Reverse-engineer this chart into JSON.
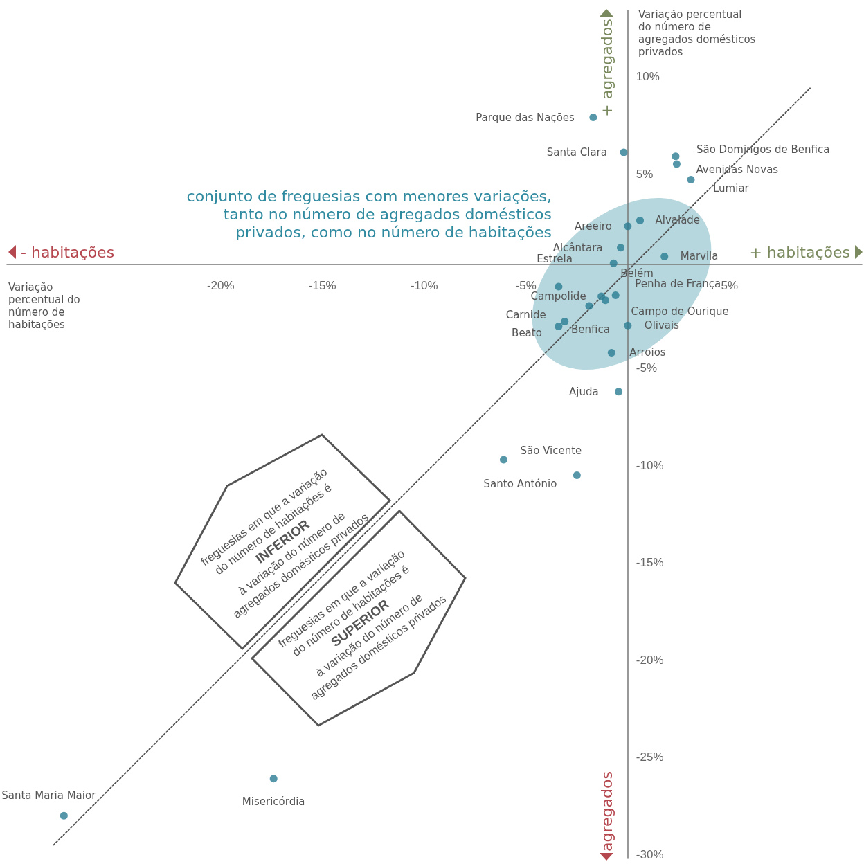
{
  "chart_data": {
    "type": "scatter",
    "xlabel": "Variação percentual do número de habitações",
    "ylabel": "Variação percentual do número de agregados domésticos privados",
    "xlim": [
      -30.5,
      11.5
    ],
    "ylim": [
      -30.2,
      13.4
    ],
    "xticks": [
      {
        "value": -20,
        "label": "-20%"
      },
      {
        "value": -15,
        "label": "-15%"
      },
      {
        "value": -10,
        "label": "-10%"
      },
      {
        "value": -5,
        "label": "-5%"
      },
      {
        "value": 5,
        "label": "5%"
      }
    ],
    "yticks": [
      {
        "value": 10,
        "label": "10%"
      },
      {
        "value": 5,
        "label": "5%"
      },
      {
        "value": -5,
        "label": "-5%"
      },
      {
        "value": -10,
        "label": "-10%"
      },
      {
        "value": -15,
        "label": "-15%"
      },
      {
        "value": -20,
        "label": "-20%"
      },
      {
        "value": -25,
        "label": "-25%"
      },
      {
        "value": -30,
        "label": "-30%"
      }
    ],
    "grid": false,
    "marker": "circle",
    "series": [
      {
        "type": "scatter",
        "color": "#2a7d93",
        "x": [
          -1.7,
          -0.2,
          2.35,
          2.4,
          3.1,
          0.6,
          0.0,
          -0.35,
          1.8,
          -0.7,
          -3.4,
          -0.6,
          -1.3,
          -1.1,
          -3.1,
          -1.9,
          -3.4,
          0.0,
          -0.8,
          -0.45,
          -6.1,
          -2.5,
          -17.4,
          -27.7
        ],
        "values": [
          7.9,
          6.1,
          5.9,
          5.5,
          4.7,
          2.6,
          2.3,
          1.2,
          0.75,
          0.4,
          -0.8,
          -1.25,
          -1.3,
          -1.5,
          -2.6,
          -1.8,
          -2.85,
          -2.8,
          -4.2,
          -6.2,
          -9.7,
          -10.5,
          -26.1,
          -28.0
        ]
      },
      {
        "type": "line",
        "color": "#555555",
        "line_style": "dotted",
        "marker": "none",
        "x": [
          -28.2,
          8.95
        ],
        "values": [
          -29.5,
          9.4
        ]
      }
    ],
    "annotations": [
      "conjunto de freguesias com menores variações,\ntanto no número de agregados domésticos\nprivados, como no número de habitações",
      "- habitações",
      "+ habitações",
      "+ agregados",
      "agregados",
      "freguesias em que a variação\ndo número de habitações é\nINFERIOR\nà variação do número de\nagregados domésticos privados",
      "freguesias em que a variação\ndo número de habitações é\nSUPERIOR\nà variação do número de\nagregados domésticos privados",
      {
        "text": "Parque das Nações",
        "x": -1.7,
        "y": 7.9
      },
      {
        "text": "Santa Clara",
        "x": -0.2,
        "y": 6.1
      },
      {
        "text": "São Domingos de Benfica",
        "x": 2.35,
        "y": 5.9
      },
      {
        "text": "Avenidas Novas",
        "x": 2.4,
        "y": 5.5
      },
      {
        "text": "Lumiar",
        "x": 3.1,
        "y": 4.7
      },
      {
        "text": "Alvalade",
        "x": 0.6,
        "y": 2.6
      },
      {
        "text": "Areeiro",
        "x": 0.0,
        "y": 2.3
      },
      {
        "text": "Alcântara",
        "x": -0.35,
        "y": 1.2
      },
      {
        "text": "Marvila",
        "x": 1.8,
        "y": 0.75
      },
      {
        "text": "Belém",
        "x": -0.7,
        "y": 0.4
      },
      {
        "text": "Estrela",
        "x": -3.4,
        "y": -0.8
      },
      {
        "text": "Penha de França",
        "x": -0.6,
        "y": -1.25
      },
      {
        "text": "Campolide",
        "x": -1.3,
        "y": -1.3
      },
      {
        "text": "Campo de Ourique",
        "x": -1.1,
        "y": -1.5
      },
      {
        "text": "Carnide",
        "x": -3.1,
        "y": -2.6
      },
      {
        "text": "Benfica",
        "x": -1.9,
        "y": -1.8
      },
      {
        "text": "Beato",
        "x": -3.4,
        "y": -2.85
      },
      {
        "text": "Olivais",
        "x": 0.0,
        "y": -2.8
      },
      {
        "text": "Arroios",
        "x": -0.8,
        "y": -4.2
      },
      {
        "text": "Ajuda",
        "x": -0.45,
        "y": -6.2
      },
      {
        "text": "São Vicente",
        "x": -6.1,
        "y": -9.7
      },
      {
        "text": "Santo António",
        "x": -2.5,
        "y": -10.5
      },
      {
        "text": "Misericórdia",
        "x": -17.4,
        "y": -26.1
      },
      {
        "text": "Santa Maria Maior",
        "x": -27.7,
        "y": -28.0
      }
    ]
  }
}
